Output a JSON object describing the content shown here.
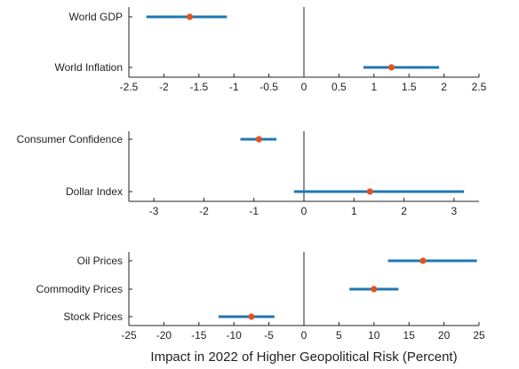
{
  "chart_data": [
    {
      "type": "scatter",
      "xlim": [
        -2.5,
        2.5
      ],
      "xticks": [
        -2.5,
        -2,
        -1.5,
        -1,
        -0.5,
        0,
        0.5,
        1,
        1.5,
        2,
        2.5
      ],
      "xtick_labels": [
        "-2.5",
        "-2",
        "-1.5",
        "-1",
        "-0.5",
        "0",
        "0.5",
        "1",
        "1.5",
        "2",
        "2.5"
      ],
      "categories": [
        "World GDP",
        "World Inflation"
      ],
      "points": [
        {
          "label": "World GDP",
          "value": -1.63,
          "lower": -2.25,
          "upper": -1.1
        },
        {
          "label": "World Inflation",
          "value": 1.25,
          "lower": 0.85,
          "upper": 1.93
        }
      ]
    },
    {
      "type": "scatter",
      "xlim": [
        -3.5,
        3.5
      ],
      "xticks": [
        -3,
        -2,
        -1,
        0,
        1,
        2,
        3
      ],
      "xtick_labels": [
        "-3",
        "-2",
        "-1",
        "0",
        "1",
        "2",
        "3"
      ],
      "categories": [
        "Consumer Confidence",
        "Dollar Index"
      ],
      "points": [
        {
          "label": "Consumer Confidence",
          "value": -0.9,
          "lower": -1.27,
          "upper": -0.55
        },
        {
          "label": "Dollar Index",
          "value": 1.32,
          "lower": -0.2,
          "upper": 3.2
        }
      ]
    },
    {
      "type": "scatter",
      "xlim": [
        -25,
        25
      ],
      "xticks": [
        -25,
        -20,
        -15,
        -10,
        -5,
        0,
        5,
        10,
        15,
        20,
        25
      ],
      "xtick_labels": [
        "-25",
        "-20",
        "-15",
        "-10",
        "-5",
        "0",
        "5",
        "10",
        "15",
        "20",
        "25"
      ],
      "categories": [
        "Oil Prices",
        "Commodity Prices",
        "Stock Prices"
      ],
      "xlabel": "Impact in 2022 of Higher Geopolitical Risk (Percent)",
      "points": [
        {
          "label": "Oil Prices",
          "value": 17.0,
          "lower": 12.0,
          "upper": 24.7
        },
        {
          "label": "Commodity Prices",
          "value": 10.0,
          "lower": 6.5,
          "upper": 13.5
        },
        {
          "label": "Stock Prices",
          "value": -7.5,
          "lower": -12.2,
          "upper": -4.2
        }
      ]
    }
  ],
  "colors": {
    "interval": "#1f77b4",
    "marker": "#e0531f",
    "axis": "#222222",
    "zero_line": "#222222"
  }
}
